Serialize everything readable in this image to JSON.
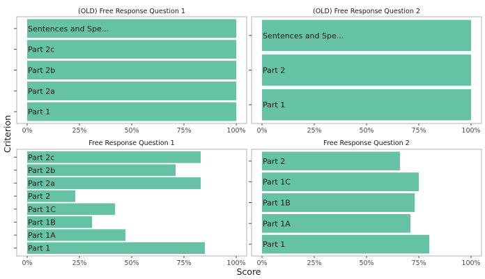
{
  "chart_data": {
    "type": "bar",
    "orientation": "horizontal",
    "xlabel": "Score",
    "ylabel": "Criterion",
    "xlim": [
      0,
      100
    ],
    "x_ticks": [
      "0%",
      "25%",
      "50%",
      "75%",
      "100%"
    ],
    "bar_color": "#66c2a5",
    "facets": [
      {
        "title": "(OLD) Free Response Question 1",
        "categories": [
          "Part 1",
          "Part 2a",
          "Part 2b",
          "Part 2c",
          "Sentences and Spe..."
        ],
        "values": [
          100,
          100,
          100,
          100,
          100
        ]
      },
      {
        "title": "(OLD) Free Response Question 2",
        "categories": [
          "Part 1",
          "Part 2",
          "Sentences and Spe..."
        ],
        "values": [
          100,
          100,
          100
        ]
      },
      {
        "title": "Free Response Question 1",
        "categories": [
          "Part 1",
          "Part 1A",
          "Part 1B",
          "Part 1C",
          "Part 2",
          "Part 2a",
          "Part 2b",
          "Part 2c"
        ],
        "values": [
          85,
          47,
          31,
          42,
          23,
          83,
          71,
          83
        ]
      },
      {
        "title": "Free Response Question 2",
        "categories": [
          "Part 1",
          "Part 1A",
          "Part 1B",
          "Part 1C",
          "Part 2"
        ],
        "values": [
          80,
          71,
          73,
          75,
          66
        ]
      }
    ]
  }
}
